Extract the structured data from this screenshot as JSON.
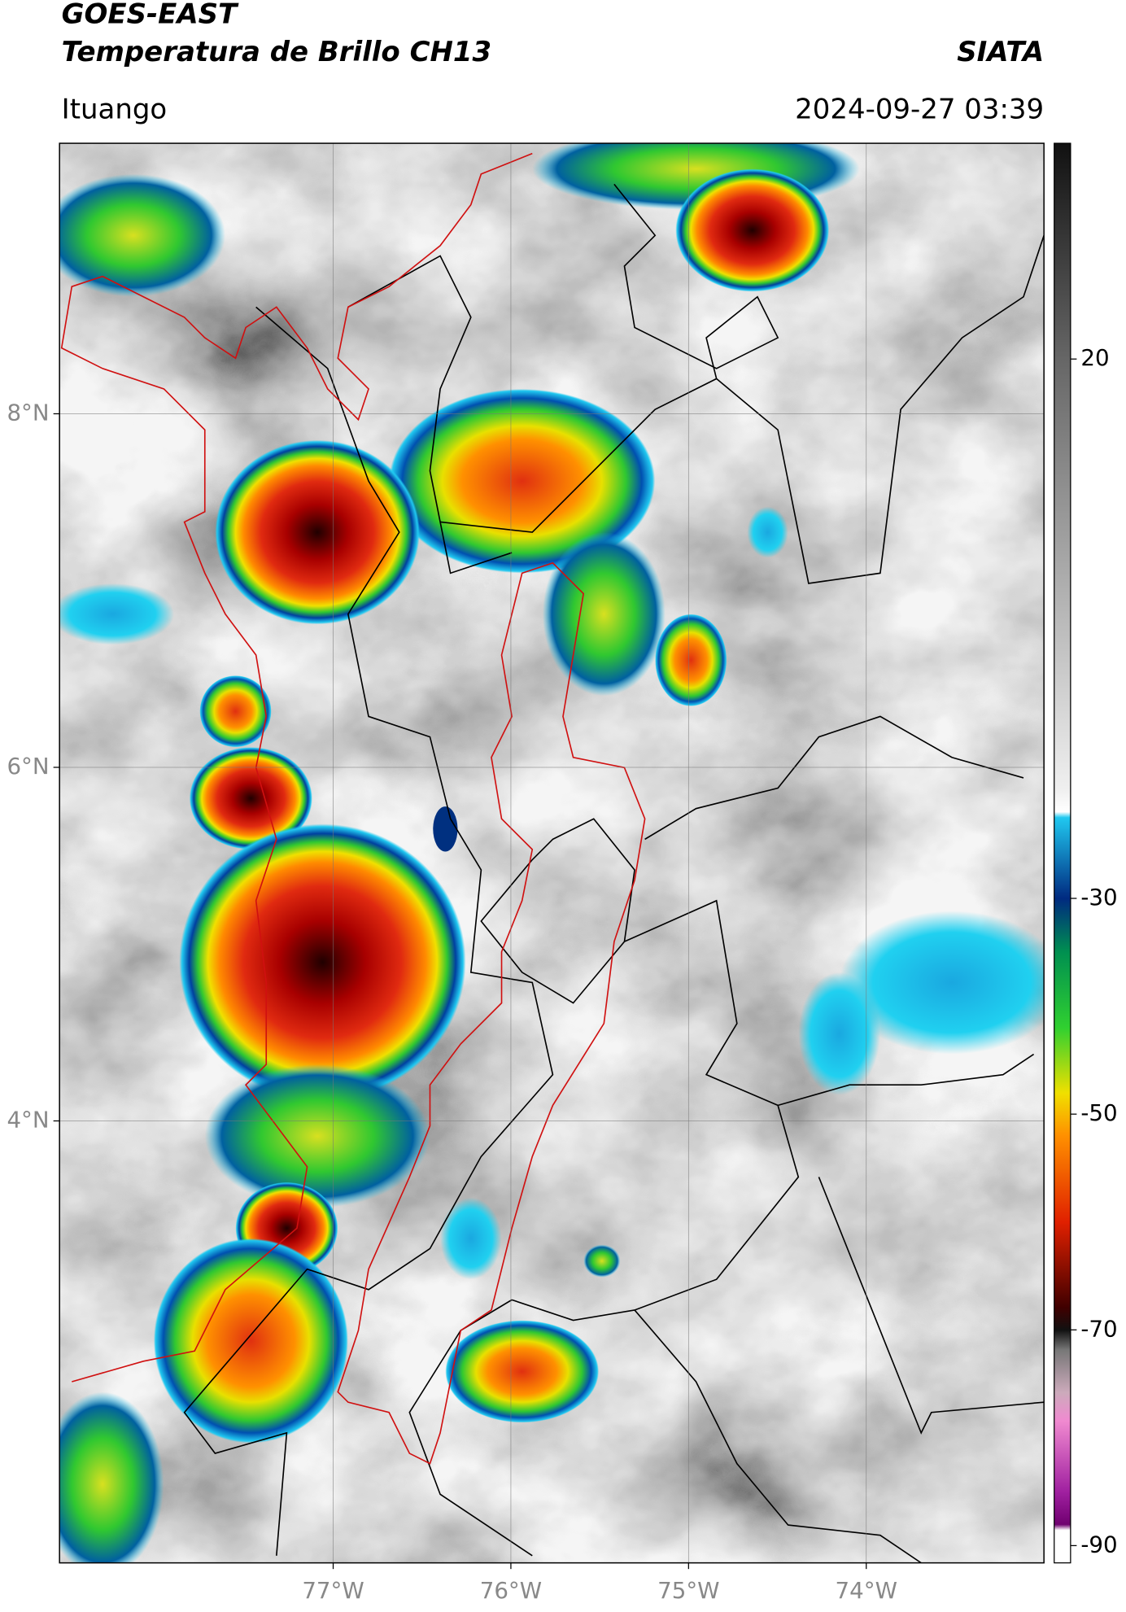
{
  "header": {
    "title": "GOES-EAST",
    "subtitle": "Temperatura de Brillo CH13",
    "source": "SIATA",
    "location": "Ituango",
    "datetime": "2024-09-27 03:39"
  },
  "map": {
    "xlim": [
      -78.54,
      -73.0
    ],
    "ylim": [
      1.5,
      9.53
    ],
    "xticks": [
      {
        "value": -77,
        "label": "77°W"
      },
      {
        "value": -76,
        "label": "76°W"
      },
      {
        "value": -75,
        "label": "75°W"
      },
      {
        "value": -74,
        "label": "74°W"
      }
    ],
    "yticks": [
      {
        "value": 8,
        "label": "8°N"
      },
      {
        "value": 6,
        "label": "6°N"
      },
      {
        "value": 4,
        "label": "4°N"
      }
    ],
    "grid": true
  },
  "colorbar": {
    "clim": [
      -91.6,
      40
    ],
    "ticks": [
      20,
      -30,
      -50,
      -70,
      -90
    ]
  }
}
